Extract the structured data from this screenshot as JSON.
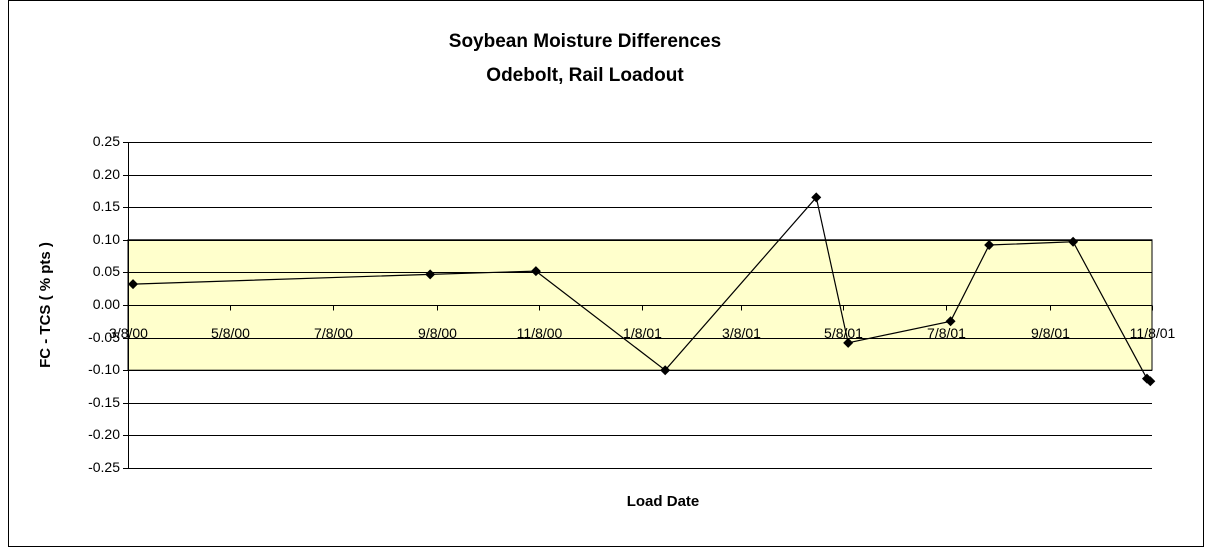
{
  "chart_data": {
    "type": "line",
    "title": "Soybean Moisture Differences",
    "subtitle": "Odebolt, Rail Loadout",
    "x_label": "Load Date",
    "y_label": "FC - TCS ( % pts )",
    "x": [
      "3/11/00",
      "9/4/00",
      "11/6/00",
      "1/22/01",
      "4/22/01",
      "5/11/01",
      "7/11/01",
      "8/3/01",
      "9/22/01",
      "11/5/01",
      "11/7/01"
    ],
    "series": [
      {
        "name": "FC - TCS",
        "color": "#000000",
        "values": [
          0.032,
          0.047,
          0.052,
          -0.1,
          0.165,
          -0.058,
          -0.025,
          0.092,
          0.097,
          -0.113,
          -0.117
        ]
      }
    ],
    "xlim": [
      "3/8/00",
      "11/8/01"
    ],
    "xticks": [
      "3/8/00",
      "5/8/00",
      "7/8/00",
      "9/8/00",
      "11/8/00",
      "1/8/01",
      "3/8/01",
      "5/8/01",
      "7/8/01",
      "9/8/01",
      "11/8/01"
    ],
    "ylim": [
      -0.25,
      0.25
    ],
    "yticks": [
      0.25,
      {
        "value": 0.2,
        "label": "0.20"
      },
      0.15,
      {
        "value": 0.1,
        "label": "0.10"
      },
      0.05,
      {
        "value": 0,
        "label": "0.00"
      },
      -0.05,
      {
        "value": -0.1,
        "label": "-0.10"
      },
      -0.15,
      {
        "value": -0.2,
        "label": "-0.20"
      },
      -0.25
    ],
    "shaded_range": [
      -0.1,
      0.1
    ],
    "shaded_color": "#ffffcc",
    "grid": true
  }
}
